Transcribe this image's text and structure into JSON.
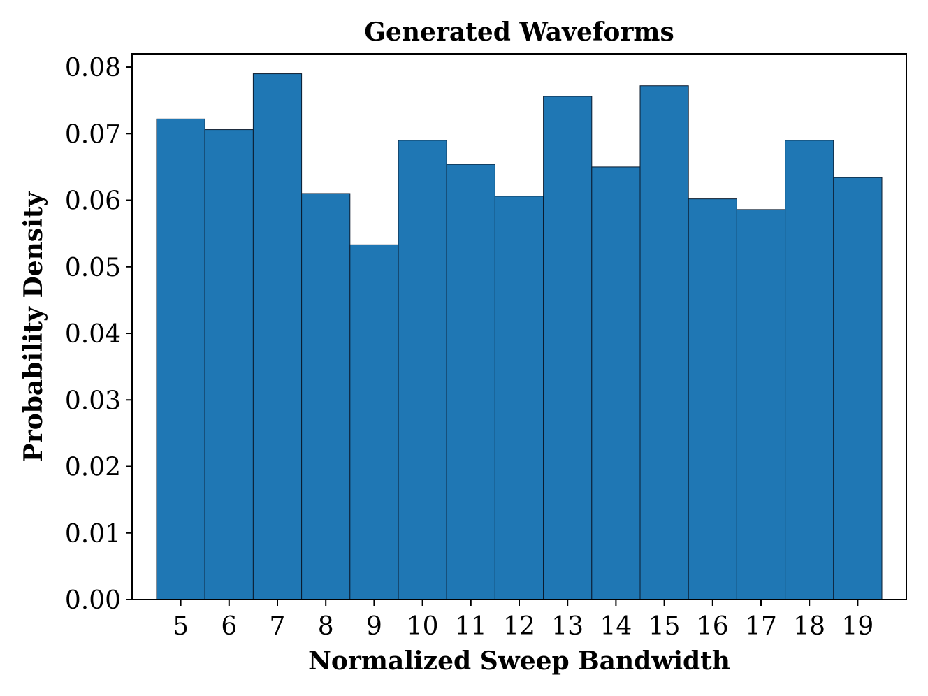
{
  "chart_data": {
    "type": "bar",
    "title": "Generated Waveforms",
    "xlabel": "Normalized Sweep Bandwidth",
    "ylabel": "Probability Density",
    "categories": [
      "5",
      "6",
      "7",
      "8",
      "9",
      "10",
      "11",
      "12",
      "13",
      "14",
      "15",
      "16",
      "17",
      "18",
      "19"
    ],
    "values": [
      0.0722,
      0.0706,
      0.079,
      0.061,
      0.0533,
      0.069,
      0.0654,
      0.0606,
      0.0756,
      0.065,
      0.0772,
      0.0602,
      0.0586,
      0.069,
      0.0634
    ],
    "ylim": [
      0,
      0.082
    ],
    "yticks": [
      "0.00",
      "0.01",
      "0.02",
      "0.03",
      "0.04",
      "0.05",
      "0.06",
      "0.07",
      "0.08"
    ],
    "ytick_values": [
      0,
      0.01,
      0.02,
      0.03,
      0.04,
      0.05,
      0.06,
      0.07,
      0.08
    ],
    "grid": false,
    "bar_color": "#1f77b4"
  }
}
